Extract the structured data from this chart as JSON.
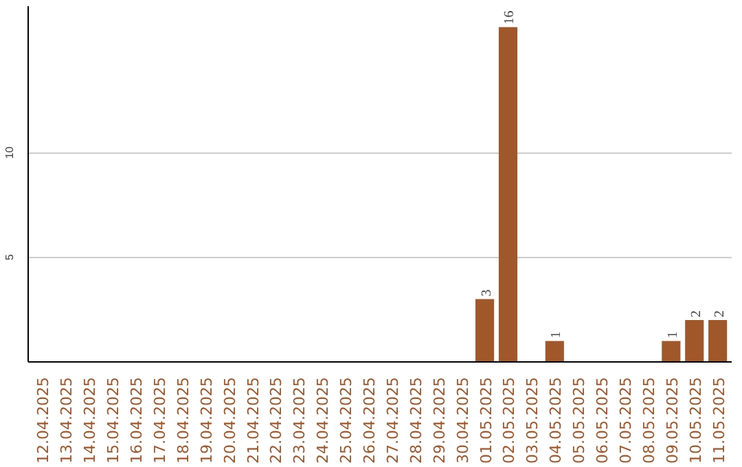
{
  "chart_data": {
    "type": "bar",
    "categories": [
      "12.04.2025",
      "13.04.2025",
      "14.04.2025",
      "15.04.2025",
      "16.04.2025",
      "17.04.2025",
      "18.04.2025",
      "19.04.2025",
      "20.04.2025",
      "21.04.2025",
      "22.04.2025",
      "23.04.2025",
      "24.04.2025",
      "25.04.2025",
      "26.04.2025",
      "27.04.2025",
      "28.04.2025",
      "29.04.2025",
      "30.04.2025",
      "01.05.2025",
      "02.05.2025",
      "03.05.2025",
      "04.05.2025",
      "05.05.2025",
      "06.05.2025",
      "07.05.2025",
      "08.05.2025",
      "09.05.2025",
      "10.05.2025",
      "11.05.2025"
    ],
    "values": [
      0,
      0,
      0,
      0,
      0,
      0,
      0,
      0,
      0,
      0,
      0,
      0,
      0,
      0,
      0,
      0,
      0,
      0,
      0,
      3,
      16,
      0,
      1,
      0,
      0,
      0,
      0,
      1,
      2,
      2
    ],
    "value_labels": [
      null,
      null,
      null,
      null,
      null,
      null,
      null,
      null,
      null,
      null,
      null,
      null,
      null,
      null,
      null,
      null,
      null,
      null,
      null,
      "3",
      "16",
      null,
      "1",
      null,
      null,
      null,
      null,
      "1",
      "2",
      "2"
    ],
    "color": "#a0572a",
    "ylim": [
      0,
      17
    ],
    "yticks": [
      5,
      10
    ],
    "grid": "y"
  }
}
